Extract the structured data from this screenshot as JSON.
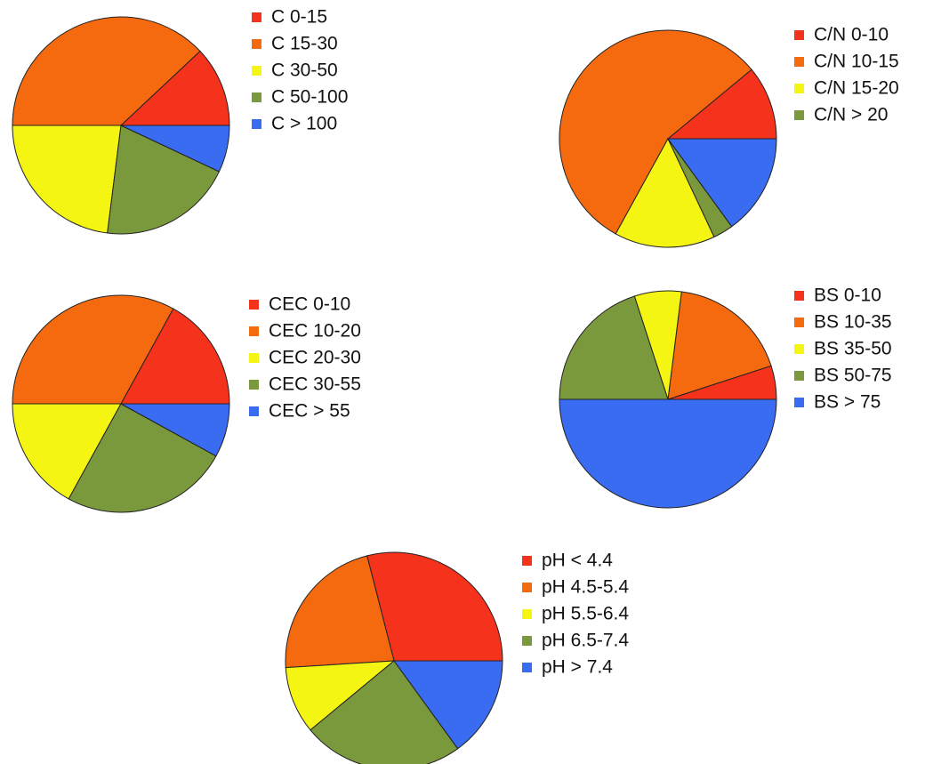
{
  "chart_data": [
    {
      "type": "pie",
      "categories": [
        "C 0-15",
        "C 15-30",
        "C 30-50",
        "C 50-100",
        "C > 100"
      ],
      "values": [
        12,
        38,
        23,
        20,
        7
      ],
      "colors": [
        "#f5321c",
        "#f5690f",
        "#f5f514",
        "#7a983c",
        "#3a6cf2"
      ]
    },
    {
      "type": "pie",
      "categories": [
        "C/N 0-10",
        "C/N 10-15",
        "C/N 15-20",
        "C/N > 20",
        null
      ],
      "values": [
        11,
        56,
        15,
        3,
        15
      ],
      "colors": [
        "#f5321c",
        "#f5690f",
        "#f5f514",
        "#7a983c",
        "#3a6cf2"
      ]
    },
    {
      "type": "pie",
      "categories": [
        "CEC 0-10",
        "CEC 10-20",
        "CEC 20-30",
        "CEC 30-55",
        "CEC > 55"
      ],
      "values": [
        17,
        33,
        17,
        25,
        8
      ],
      "colors": [
        "#f5321c",
        "#f5690f",
        "#f5f514",
        "#7a983c",
        "#3a6cf2"
      ]
    },
    {
      "type": "pie",
      "categories": [
        "BS 0-10",
        "BS 10-35",
        "BS 35-50",
        "BS 50-75",
        "BS > 75"
      ],
      "values": [
        5,
        18,
        7,
        20,
        50
      ],
      "colors": [
        "#f5321c",
        "#f5690f",
        "#f5f514",
        "#7a983c",
        "#3a6cf2"
      ]
    },
    {
      "type": "pie",
      "categories": [
        "pH < 4.4",
        "pH 4.5-5.4",
        "pH 5.5-6.4",
        "pH 6.5-7.4",
        "pH > 7.4"
      ],
      "values": [
        29,
        22,
        10,
        24,
        15
      ],
      "colors": [
        "#f5321c",
        "#f5690f",
        "#f5f514",
        "#7a983c",
        "#3a6cf2"
      ]
    }
  ]
}
